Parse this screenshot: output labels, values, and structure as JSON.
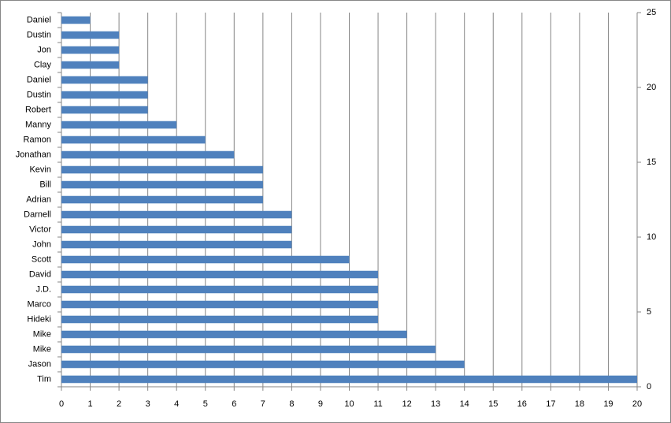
{
  "chart_data": {
    "type": "bar",
    "orientation": "horizontal",
    "categories": [
      "Tim",
      "Jason",
      "Mike",
      "Mike",
      "Hideki",
      "Marco",
      "J.D.",
      "David",
      "Scott",
      "John",
      "Victor",
      "Darnell",
      "Adrian",
      "Bill",
      "Kevin",
      "Jonathan",
      "Ramon",
      "Manny",
      "Robert",
      "Dustin",
      "Daniel",
      "Clay",
      "Jon",
      "Dustin",
      "Daniel"
    ],
    "values": [
      20,
      14,
      13,
      12,
      11,
      11,
      11,
      11,
      10,
      8,
      8,
      8,
      7,
      7,
      7,
      6,
      5,
      4,
      3,
      3,
      3,
      2,
      2,
      2,
      1
    ],
    "color": "#4f81bd",
    "xlim": [
      0,
      20
    ],
    "xticks": [
      0,
      1,
      2,
      3,
      4,
      5,
      6,
      7,
      8,
      9,
      10,
      11,
      12,
      13,
      14,
      15,
      16,
      17,
      18,
      19,
      20
    ],
    "y2lim": [
      0,
      25
    ],
    "y2ticks": [
      0,
      5,
      10,
      15,
      20,
      25
    ],
    "grid": true
  }
}
